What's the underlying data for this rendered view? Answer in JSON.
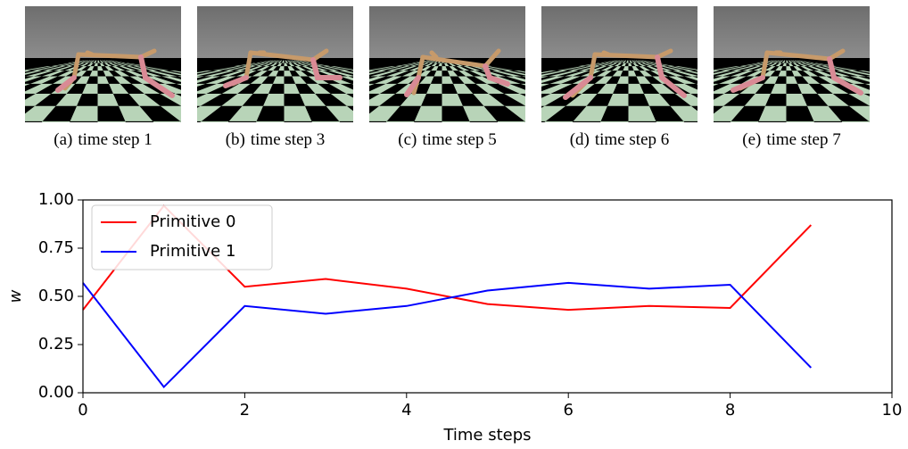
{
  "panels": [
    {
      "label": "(a)",
      "caption": "time step 1"
    },
    {
      "label": "(b)",
      "caption": "time step 3"
    },
    {
      "label": "(c)",
      "caption": "time step 5"
    },
    {
      "label": "(d)",
      "caption": "time step 6"
    },
    {
      "label": "(e)",
      "caption": "time step 7"
    }
  ],
  "chart_data": {
    "type": "line",
    "x": [
      0,
      1,
      2,
      3,
      4,
      5,
      6,
      7,
      8,
      9
    ],
    "series": [
      {
        "name": "Primitive 0",
        "color": "#ff0000",
        "values": [
          0.43,
          0.97,
          0.55,
          0.59,
          0.54,
          0.46,
          0.43,
          0.45,
          0.44,
          0.87
        ]
      },
      {
        "name": "Primitive 1",
        "color": "#0000ff",
        "values": [
          0.57,
          0.03,
          0.45,
          0.41,
          0.45,
          0.53,
          0.57,
          0.54,
          0.56,
          0.13
        ]
      }
    ],
    "xlabel": "Time steps",
    "ylabel": "w",
    "xlim": [
      0,
      10
    ],
    "xticks": [
      0,
      2,
      4,
      6,
      8,
      10
    ],
    "ylim": [
      0,
      1
    ],
    "yticks": [
      {
        "value": 0,
        "label": "0.00"
      },
      {
        "value": 0.25,
        "label": "0.25"
      },
      {
        "value": 0.5,
        "label": "0.50"
      },
      {
        "value": 0.75,
        "label": "0.75"
      },
      {
        "value": 1,
        "label": "1.00"
      }
    ],
    "legend": "upper left"
  }
}
